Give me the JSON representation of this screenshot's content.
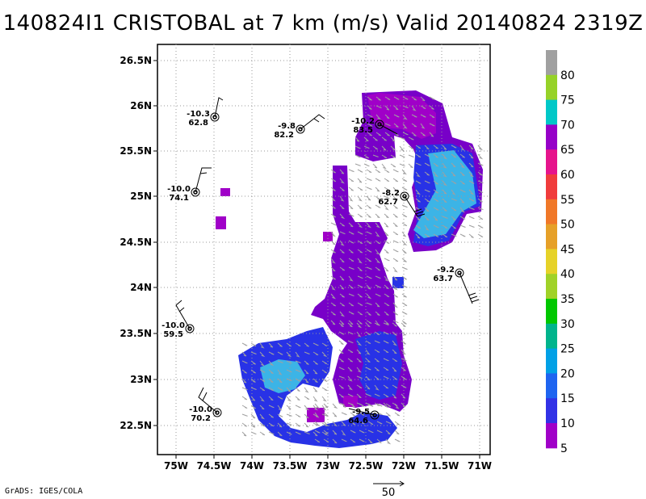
{
  "title": "140824I1 CRISTOBAL at 7 km (m/s) Valid 20140824 2319Z",
  "footer": "GrADS: IGES/COLA",
  "vector_scale_label": "50",
  "axes": {
    "lon_ticks": [
      "75W",
      "74.5W",
      "74W",
      "73.5W",
      "73W",
      "72.5W",
      "72W",
      "71.5W",
      "71W"
    ],
    "lat_ticks": [
      "26.5N",
      "26N",
      "25.5N",
      "25N",
      "24.5N",
      "24N",
      "23.5N",
      "23N",
      "22.5N"
    ]
  },
  "colorbar": {
    "labels": [
      "80",
      "75",
      "70",
      "65",
      "60",
      "55",
      "50",
      "45",
      "40",
      "35",
      "30",
      "25",
      "20",
      "15",
      "10",
      "5"
    ],
    "colors": [
      "#a0a0a0",
      "#96d228",
      "#00c8c8",
      "#9600c8",
      "#e6148c",
      "#f03c3c",
      "#f07828",
      "#e6a028",
      "#e6d228",
      "#a0d228",
      "#00c800",
      "#00b48c",
      "#00a0e6",
      "#1e64f0",
      "#3232e6",
      "#a000c8"
    ]
  },
  "legend_swatches": {
    "c5": "#a000c8",
    "c10": "#2832e6",
    "c15": "#1e8cf0",
    "c20": "#3cb4e6",
    "c70": "#7800c8"
  },
  "observations": [
    {
      "temp": "-10.3",
      "rh": "62.8"
    },
    {
      "temp": "-9.8",
      "rh": "82.2"
    },
    {
      "temp": "-10.2",
      "rh": "83.5"
    },
    {
      "temp": "-10.0",
      "rh": "74.1"
    },
    {
      "temp": "-8.2",
      "rh": "62.7"
    },
    {
      "temp": "-9.2",
      "rh": "63.7"
    },
    {
      "temp": "-10.0",
      "rh": "59.5"
    },
    {
      "temp": "-10.0",
      "rh": "70.2"
    },
    {
      "temp": "-9.5",
      "rh": "64.6"
    }
  ]
}
